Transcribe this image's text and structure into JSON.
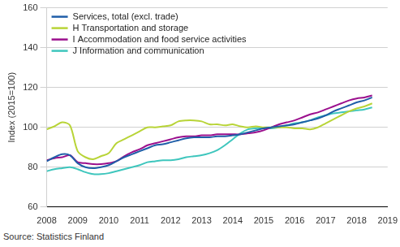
{
  "chart_data": {
    "type": "line",
    "y_label": "Index (2015=100)",
    "source": "Source: Statistics Finland",
    "xlim": [
      2008,
      2019
    ],
    "xticks": [
      2008,
      2009,
      2010,
      2011,
      2012,
      2013,
      2014,
      2015,
      2016,
      2017,
      2018,
      2019
    ],
    "ylim": [
      60,
      160
    ],
    "yticks": [
      60,
      80,
      100,
      120,
      140,
      160
    ],
    "grid": true,
    "legend": "upper left",
    "x": [
      2008,
      2008.25,
      2008.5,
      2008.75,
      2009,
      2009.25,
      2009.5,
      2009.75,
      2010,
      2010.25,
      2010.5,
      2010.75,
      2011,
      2011.25,
      2011.5,
      2011.75,
      2012,
      2012.25,
      2012.5,
      2012.75,
      2013,
      2013.25,
      2013.5,
      2013.75,
      2014,
      2014.25,
      2014.5,
      2014.75,
      2015,
      2015.25,
      2015.5,
      2015.75,
      2016,
      2016.25,
      2016.5,
      2016.75,
      2017,
      2017.25,
      2017.5,
      2017.75,
      2018,
      2018.25,
      2018.5
    ],
    "series": [
      {
        "name": "Services, total (excl. trade)",
        "color": "#1f5ea8",
        "values": [
          83,
          85,
          86.5,
          86,
          82,
          80,
          79.5,
          80,
          81,
          83,
          85,
          86.5,
          88,
          89.5,
          91,
          91.5,
          92.5,
          93.5,
          94.5,
          95,
          95,
          95,
          95.5,
          95.5,
          96,
          96.5,
          97.5,
          98.5,
          99.5,
          100,
          100.5,
          101,
          101.5,
          102.5,
          103.5,
          104.5,
          106,
          108,
          109.5,
          111,
          112.5,
          113.5,
          115
        ]
      },
      {
        "name": "H Transportation and storage",
        "color": "#b8d437",
        "values": [
          99,
          100.5,
          102.5,
          101,
          88,
          85,
          84,
          85.5,
          87,
          92,
          94,
          96,
          98,
          100,
          100,
          100.5,
          101,
          103,
          103.5,
          103.5,
          103,
          101.5,
          101.5,
          101,
          101.5,
          100.5,
          100,
          100.5,
          100,
          100,
          100,
          100,
          99.5,
          99.5,
          99,
          100,
          102,
          104,
          106,
          108,
          109.5,
          110.5,
          112
        ]
      },
      {
        "name": "I Accommodation and food service activities",
        "color": "#9b0f8d",
        "values": [
          83.5,
          84.5,
          85,
          86,
          82.5,
          82,
          81.5,
          81.5,
          82,
          83,
          85.5,
          87.5,
          89,
          91,
          92,
          93,
          94,
          95,
          95.5,
          95.5,
          96,
          96,
          96.5,
          96.5,
          96.5,
          96.5,
          97,
          97.5,
          98.5,
          100,
          101.5,
          102.5,
          103.5,
          105,
          106.5,
          107.5,
          109,
          110.5,
          112,
          113.5,
          114.5,
          115,
          116
        ]
      },
      {
        "name": "J Information and communication",
        "color": "#3ec6bd",
        "values": [
          78,
          79,
          79.5,
          80,
          79,
          77.5,
          76.5,
          76.5,
          77,
          78,
          79,
          80,
          81,
          82.5,
          83,
          83.5,
          83.5,
          84,
          85,
          85.5,
          86,
          87,
          88.5,
          91,
          94,
          97,
          99,
          99.5,
          99.5,
          99.5,
          100,
          101,
          102,
          102.5,
          103.5,
          105,
          106,
          107,
          107.5,
          108,
          108.5,
          109,
          110
        ]
      }
    ]
  }
}
